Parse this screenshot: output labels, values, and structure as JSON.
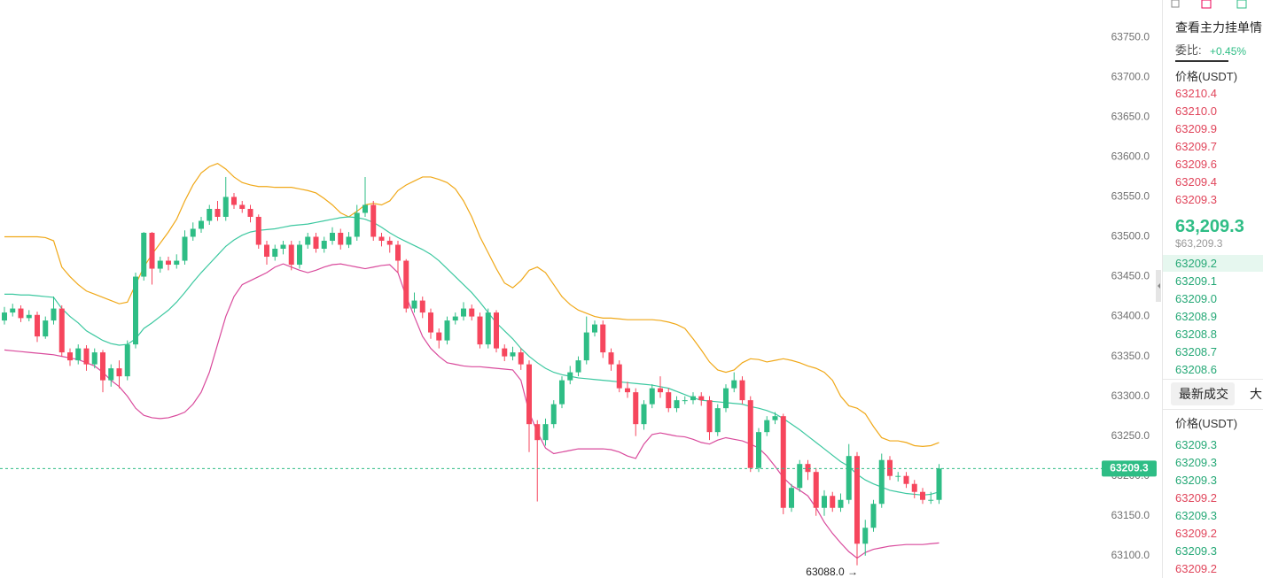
{
  "chart_data": {
    "type": "candlestick",
    "up_color": "#2ebd85",
    "down_color": "#f6465d",
    "ylim": [
      63072,
      63797
    ],
    "yticks": [
      {
        "value": 63100,
        "label": "63100.0"
      },
      {
        "value": 63150,
        "label": "63150.0"
      },
      {
        "value": 63200,
        "label": "63200.0"
      },
      {
        "value": 63250,
        "label": "63250.0"
      },
      {
        "value": 63300,
        "label": "63300.0"
      },
      {
        "value": 63350,
        "label": "63350.0"
      },
      {
        "value": 63400,
        "label": "63400.0"
      },
      {
        "value": 63450,
        "label": "63450.0"
      },
      {
        "value": 63500,
        "label": "63500.0"
      },
      {
        "value": 63550,
        "label": "63550.0"
      },
      {
        "value": 63600,
        "label": "63600.0"
      },
      {
        "value": 63650,
        "label": "63650.0"
      },
      {
        "value": 63700,
        "label": "63700.0"
      },
      {
        "value": 63750,
        "label": "63750.0"
      }
    ],
    "grid": false,
    "open": [
      63395,
      63405,
      63410,
      63398,
      63402,
      63375,
      63395,
      63410,
      63355,
      63345,
      63360,
      63340,
      63355,
      63320,
      63335,
      63325,
      63365,
      63450,
      63505,
      63460,
      63470,
      63465,
      63470,
      63500,
      63510,
      63520,
      63535,
      63525,
      63550,
      63540,
      63535,
      63525,
      63490,
      63475,
      63485,
      63490,
      63465,
      63490,
      63500,
      63485,
      63495,
      63505,
      63490,
      63500,
      63530,
      63540,
      63500,
      63495,
      63490,
      63470,
      63410,
      63420,
      63405,
      63380,
      63370,
      63395,
      63400,
      63410,
      63400,
      63365,
      63405,
      63360,
      63350,
      63355,
      63340,
      63265,
      63245,
      63265,
      63290,
      63320,
      63330,
      63345,
      63380,
      63390,
      63355,
      63340,
      63310,
      63305,
      63265,
      63290,
      63310,
      63305,
      63285,
      63295,
      63295,
      63300,
      63295,
      63255,
      63285,
      63310,
      63320,
      63295,
      63210,
      63255,
      63270,
      63275,
      63160,
      63185,
      63215,
      63205,
      63160,
      63175,
      63160,
      63170,
      63225,
      63115,
      63135,
      63165,
      63220,
      63200,
      63200,
      63190,
      63180,
      63170,
      63170
    ],
    "high": [
      63412,
      63416,
      63414,
      63408,
      63406,
      63400,
      63425,
      63414,
      63360,
      63365,
      63364,
      63360,
      63358,
      63340,
      63345,
      63370,
      63455,
      63506,
      63506,
      63475,
      63475,
      63478,
      63508,
      63518,
      63525,
      63540,
      63545,
      63575,
      63555,
      63545,
      63540,
      63528,
      63495,
      63490,
      63495,
      63495,
      63495,
      63505,
      63505,
      63500,
      63512,
      63510,
      63506,
      63540,
      63575,
      63545,
      63505,
      63500,
      63495,
      63472,
      63430,
      63425,
      63410,
      63385,
      63400,
      63405,
      63418,
      63415,
      63405,
      63410,
      63408,
      63365,
      63362,
      63360,
      63345,
      63270,
      63272,
      63295,
      63325,
      63338,
      63350,
      63400,
      63395,
      63395,
      63360,
      63345,
      63318,
      63310,
      63295,
      63315,
      63325,
      63310,
      63300,
      63300,
      63305,
      63305,
      63300,
      63290,
      63315,
      63330,
      63325,
      63300,
      63260,
      63275,
      63280,
      63278,
      63190,
      63220,
      63220,
      63210,
      63182,
      63180,
      63178,
      63240,
      63230,
      63145,
      63170,
      63228,
      63225,
      63205,
      63205,
      63195,
      63185,
      63180,
      63215
    ],
    "low": [
      63390,
      63400,
      63393,
      63394,
      63368,
      63372,
      63390,
      63350,
      63338,
      63340,
      63332,
      63335,
      63305,
      63312,
      63310,
      63320,
      63360,
      63445,
      63440,
      63455,
      63458,
      63460,
      63465,
      63495,
      63505,
      63515,
      63520,
      63520,
      63535,
      63530,
      63518,
      63485,
      63465,
      63470,
      63478,
      63458,
      63460,
      63485,
      63480,
      63480,
      63490,
      63484,
      63486,
      63495,
      63525,
      63495,
      63488,
      63480,
      63455,
      63405,
      63405,
      63398,
      63372,
      63360,
      63365,
      63390,
      63395,
      63395,
      63360,
      63360,
      63355,
      63344,
      63345,
      63333,
      63230,
      63168,
      63238,
      63260,
      63285,
      63315,
      63325,
      63340,
      63375,
      63348,
      63332,
      63305,
      63298,
      63250,
      63258,
      63285,
      63298,
      63280,
      63280,
      63290,
      63290,
      63288,
      63245,
      63250,
      63280,
      63305,
      63290,
      63205,
      63205,
      63250,
      63265,
      63152,
      63155,
      63180,
      63195,
      63150,
      63150,
      63155,
      63155,
      63165,
      63088,
      63100,
      63130,
      63160,
      63195,
      63193,
      63185,
      63172,
      63165,
      63165,
      63165
    ],
    "close": [
      63405,
      63410,
      63398,
      63402,
      63375,
      63395,
      63410,
      63355,
      63345,
      63360,
      63340,
      63355,
      63320,
      63335,
      63325,
      63365,
      63450,
      63505,
      63460,
      63470,
      63465,
      63470,
      63500,
      63510,
      63520,
      63535,
      63525,
      63550,
      63540,
      63535,
      63525,
      63490,
      63475,
      63485,
      63490,
      63465,
      63490,
      63500,
      63485,
      63495,
      63505,
      63490,
      63500,
      63530,
      63540,
      63500,
      63495,
      63490,
      63470,
      63410,
      63420,
      63405,
      63380,
      63370,
      63395,
      63400,
      63410,
      63400,
      63365,
      63405,
      63360,
      63350,
      63355,
      63340,
      63265,
      63245,
      63265,
      63290,
      63320,
      63330,
      63345,
      63380,
      63390,
      63355,
      63340,
      63310,
      63305,
      63265,
      63290,
      63310,
      63305,
      63285,
      63295,
      63295,
      63300,
      63295,
      63255,
      63285,
      63310,
      63320,
      63295,
      63210,
      63255,
      63270,
      63275,
      63160,
      63185,
      63215,
      63205,
      63160,
      63175,
      63160,
      63170,
      63225,
      63115,
      63135,
      63165,
      63220,
      63200,
      63200,
      63190,
      63180,
      63170,
      63170,
      63209.3
    ],
    "overlays": [
      {
        "color": "#f0a818",
        "values": [
          63500,
          63500,
          63500,
          63500,
          63500,
          63499,
          63495,
          63462,
          63450,
          63440,
          63432,
          63428,
          63424,
          63420,
          63416,
          63418,
          63440,
          63462,
          63478,
          63492,
          63506,
          63522,
          63545,
          63565,
          63580,
          63588,
          63592,
          63585,
          63575,
          63568,
          63565,
          63563,
          63563,
          63562,
          63562,
          63562,
          63560,
          63558,
          63555,
          63548,
          63540,
          63530,
          63525,
          63532,
          63540,
          63542,
          63540,
          63545,
          63558,
          63565,
          63570,
          63575,
          63575,
          63572,
          63568,
          63560,
          63545,
          63525,
          63500,
          63480,
          63460,
          63442,
          63436,
          63445,
          63458,
          63462,
          63455,
          63440,
          63425,
          63415,
          63408,
          63404,
          63400,
          63398,
          63398,
          63397,
          63396,
          63396,
          63396,
          63396,
          63395,
          63393,
          63390,
          63385,
          63372,
          63358,
          63343,
          63333,
          63330,
          63333,
          63342,
          63347,
          63346,
          63343,
          63345,
          63347,
          63345,
          63342,
          63338,
          63335,
          63330,
          63320,
          63300,
          63288,
          63285,
          63278,
          63262,
          63248,
          63244,
          63244,
          63242,
          63238,
          63237,
          63238,
          63242
        ]
      },
      {
        "color": "#3cc8a0",
        "values": [
          63428,
          63428,
          63427,
          63427,
          63426,
          63425,
          63424,
          63410,
          63400,
          63392,
          63382,
          63376,
          63370,
          63366,
          63364,
          63365,
          63372,
          63385,
          63392,
          63400,
          63408,
          63418,
          63430,
          63443,
          63455,
          63466,
          63477,
          63488,
          63496,
          63502,
          63506,
          63508,
          63509,
          63510,
          63512,
          63514,
          63515,
          63516,
          63518,
          63520,
          63522,
          63524,
          63525,
          63524,
          63522,
          63518,
          63512,
          63505,
          63499,
          63494,
          63489,
          63484,
          63478,
          63470,
          63460,
          63450,
          63440,
          63430,
          63418,
          63405,
          63392,
          63382,
          63372,
          63360,
          63350,
          63342,
          63335,
          63330,
          63327,
          63325,
          63323,
          63322,
          63321,
          63320,
          63319,
          63318,
          63317,
          63316,
          63315,
          63314,
          63312,
          63310,
          63306,
          63302,
          63298,
          63295,
          63294,
          63293,
          63292,
          63291,
          63290,
          63287,
          63285,
          63282,
          63278,
          63272,
          63265,
          63258,
          63250,
          63242,
          63234,
          63226,
          63218,
          63212,
          63202,
          63195,
          63190,
          63186,
          63182,
          63180,
          63178,
          63177,
          63176,
          63177,
          63180
        ]
      },
      {
        "color": "#d94a9c",
        "values": [
          63358,
          63357,
          63356,
          63355,
          63354,
          63353,
          63352,
          63350,
          63348,
          63346,
          63342,
          63338,
          63330,
          63320,
          63312,
          63300,
          63285,
          63276,
          63273,
          63272,
          63273,
          63276,
          63280,
          63290,
          63305,
          63330,
          63365,
          63400,
          63425,
          63440,
          63445,
          63450,
          63455,
          63462,
          63466,
          63462,
          63458,
          63455,
          63458,
          63462,
          63465,
          63466,
          63464,
          63462,
          63460,
          63462,
          63464,
          63465,
          63455,
          63425,
          63400,
          63375,
          63360,
          63350,
          63342,
          63340,
          63338,
          63337,
          63337,
          63336,
          63335,
          63334,
          63333,
          63320,
          63280,
          63255,
          63235,
          63228,
          63230,
          63232,
          63234,
          63234,
          63234,
          63234,
          63233,
          63230,
          63225,
          63222,
          63240,
          63252,
          63254,
          63252,
          63250,
          63249,
          63246,
          63242,
          63240,
          63245,
          63248,
          63246,
          63244,
          63240,
          63235,
          63225,
          63212,
          63198,
          63188,
          63182,
          63175,
          63160,
          63142,
          63128,
          63116,
          63105,
          63097,
          63104,
          63108,
          63110,
          63112,
          63113,
          63114,
          63114,
          63114,
          63115,
          63116
        ]
      }
    ],
    "low_annotation": "63088.0 →"
  },
  "order_book": {
    "link": "查看主力挂单情",
    "ratio_label": "委比:",
    "ratio": "+0.45%",
    "price_header": "价格(USDT)",
    "asks": [
      "63210.4",
      "63210.0",
      "63209.9",
      "63209.7",
      "63209.6",
      "63209.4",
      "63209.3"
    ],
    "last_price": "63,209.3",
    "last_price_usd": "$63,209.3",
    "bids": [
      "63209.2",
      "63209.1",
      "63209.0",
      "63208.9",
      "63208.8",
      "63208.7",
      "63208.6"
    ]
  },
  "trades": {
    "tabs": [
      "最新成交",
      "大"
    ],
    "price_header": "价格(USDT)",
    "rows": [
      {
        "price": "63209.3",
        "side": "buy"
      },
      {
        "price": "63209.3",
        "side": "buy"
      },
      {
        "price": "63209.3",
        "side": "buy"
      },
      {
        "price": "63209.2",
        "side": "sell"
      },
      {
        "price": "63209.3",
        "side": "buy"
      },
      {
        "price": "63209.2",
        "side": "sell"
      },
      {
        "price": "63209.3",
        "side": "buy"
      },
      {
        "price": "63209.2",
        "side": "sell"
      }
    ]
  }
}
